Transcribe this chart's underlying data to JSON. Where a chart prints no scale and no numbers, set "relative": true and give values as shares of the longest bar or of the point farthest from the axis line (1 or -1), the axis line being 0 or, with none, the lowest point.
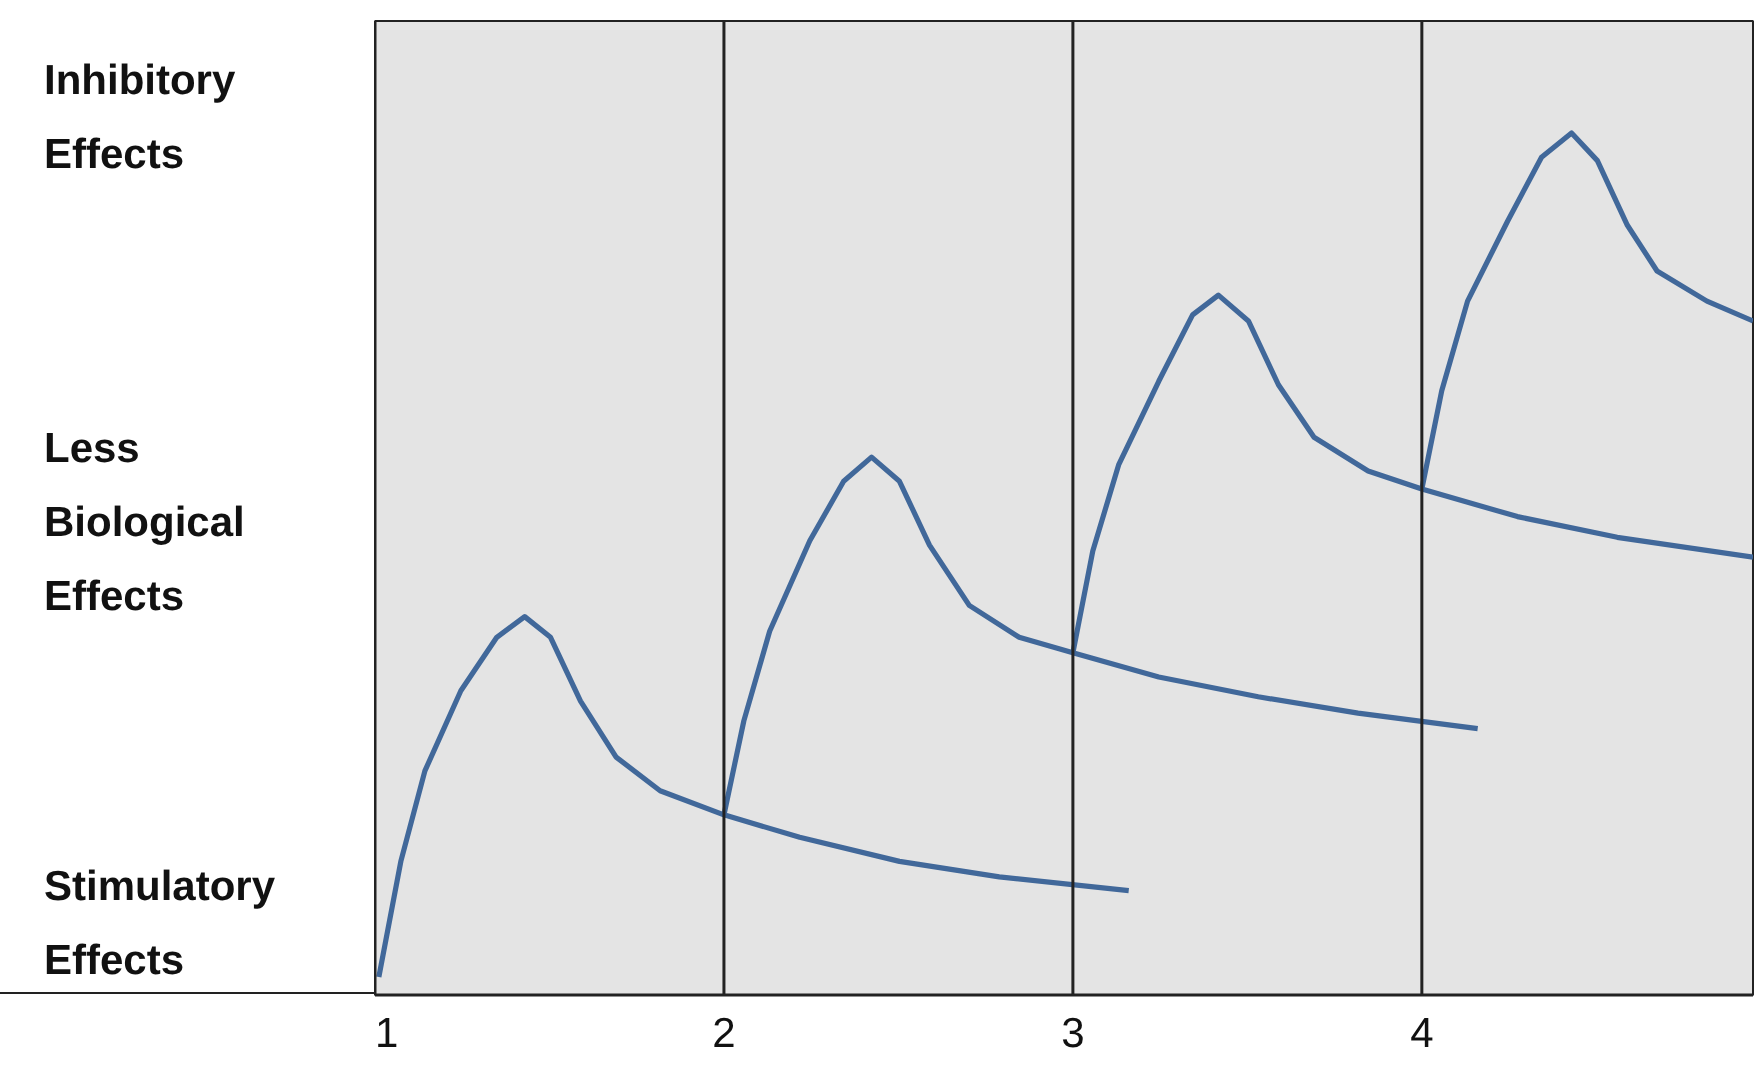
{
  "chart_data": {
    "type": "line",
    "relative": true,
    "xlim": [
      1,
      4.949
    ],
    "xticks": [
      1,
      2,
      3,
      4
    ],
    "annotations": [
      "Inhibitory\nEffects",
      "Less\nBiological\nEffects",
      "Stimulatory\nEffects"
    ],
    "ref_lines": [
      {
        "axis": "x",
        "value": 2,
        "color": "#222222"
      },
      {
        "axis": "x",
        "value": 3,
        "color": "#222222"
      },
      {
        "axis": "x",
        "value": 4,
        "color": "#222222"
      }
    ],
    "grid": false,
    "series": [
      {
        "color": "#41689a",
        "x": [
          1.011,
          1.074,
          1.143,
          1.246,
          1.349,
          1.429,
          1.503,
          1.589,
          1.691,
          1.817,
          2.0,
          2.217,
          2.503,
          2.789,
          3.16
        ],
        "values": [
          0.021,
          0.155,
          0.26,
          0.353,
          0.415,
          0.439,
          0.415,
          0.341,
          0.276,
          0.237,
          0.209,
          0.183,
          0.155,
          0.137,
          0.121
        ]
      },
      {
        "color": "#41689a",
        "x": [
          2.0,
          2.057,
          2.131,
          2.246,
          2.343,
          2.423,
          2.503,
          2.589,
          2.703,
          2.846,
          3.0,
          3.246,
          3.531,
          3.817,
          4.16
        ],
        "values": [
          0.209,
          0.318,
          0.422,
          0.527,
          0.596,
          0.624,
          0.596,
          0.522,
          0.452,
          0.415,
          0.397,
          0.369,
          0.346,
          0.327,
          0.309
        ]
      },
      {
        "color": "#41689a",
        "x": [
          3.0,
          3.057,
          3.131,
          3.246,
          3.343,
          3.417,
          3.503,
          3.589,
          3.691,
          3.846,
          4.0,
          4.274,
          4.56,
          4.949
        ],
        "values": [
          0.397,
          0.515,
          0.615,
          0.712,
          0.789,
          0.812,
          0.782,
          0.708,
          0.647,
          0.608,
          0.587,
          0.555,
          0.531,
          0.508
        ]
      },
      {
        "color": "#41689a",
        "x": [
          4.0,
          4.057,
          4.131,
          4.246,
          4.343,
          4.429,
          4.503,
          4.589,
          4.674,
          4.817,
          4.949
        ],
        "values": [
          0.587,
          0.701,
          0.805,
          0.898,
          0.972,
          1.0,
          0.968,
          0.893,
          0.84,
          0.805,
          0.782
        ]
      }
    ]
  }
}
